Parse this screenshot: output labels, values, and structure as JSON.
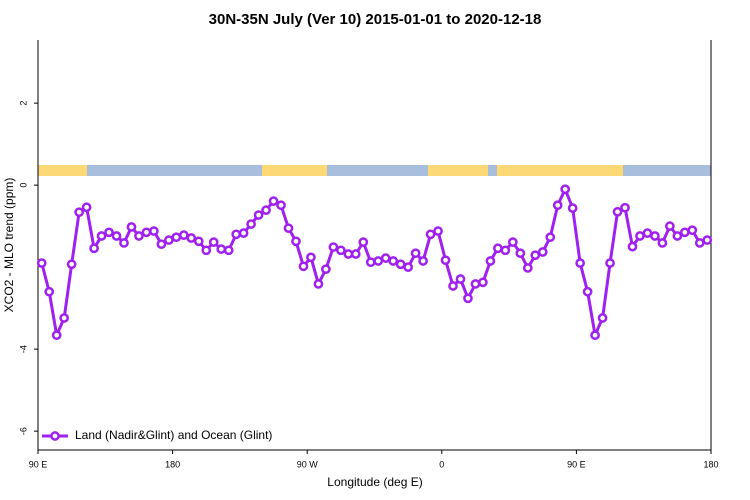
{
  "chart_data": {
    "type": "line",
    "title": "30N-35N July (Ver 10)   2015-01-01 to 2020-12-18",
    "x_label": "Longitude (deg E)",
    "y_label": "XCO2 - MLO trend (ppm)",
    "xlim": [
      90,
      540
    ],
    "xticks": [
      {
        "value": 90,
        "label": "90 E"
      },
      180,
      {
        "value": 270,
        "label": "90 W"
      },
      {
        "value": 360,
        "label": "0"
      },
      {
        "value": 450,
        "label": "90 E"
      },
      {
        "value": 540,
        "label": "180"
      }
    ],
    "ylim": [
      -6.46,
      3.54
    ],
    "yticks": [
      -6,
      -4,
      0,
      2
    ],
    "legend": "bottom-left",
    "x": [
      92.5,
      97.5,
      102.5,
      107.5,
      112.5,
      117.5,
      122.5,
      127.5,
      132.5,
      137.5,
      142.5,
      147.5,
      152.5,
      157.5,
      162.5,
      167.5,
      172.5,
      177.5,
      182.5,
      187.5,
      192.5,
      197.5,
      202.5,
      207.5,
      212.5,
      217.5,
      222.5,
      227.5,
      232.5,
      237.5,
      242.5,
      247.5,
      252.5,
      257.5,
      262.5,
      267.5,
      272.5,
      277.5,
      282.5,
      287.5,
      292.5,
      297.5,
      302.5,
      307.5,
      312.5,
      317.5,
      322.5,
      327.5,
      332.5,
      337.5,
      342.5,
      347.5,
      352.5,
      357.5,
      362.5,
      367.5,
      372.5,
      377.5,
      382.5,
      387.5,
      392.5,
      397.5,
      402.5,
      407.5,
      412.5,
      417.5,
      422.5,
      427.5,
      432.5,
      437.5,
      442.5,
      447.5,
      452.5,
      457.5,
      462.5,
      467.5,
      472.5,
      477.5,
      482.5,
      487.5,
      492.5,
      497.5,
      502.5,
      507.5,
      512.5,
      517.5,
      522.5,
      527.5,
      532.5,
      537.5
    ],
    "series": [
      {
        "name": "Land (Nadir&Glint) and Ocean (Glint)",
        "color": "#a020f0",
        "values": [
          -1.9,
          -2.6,
          -3.66,
          -3.24,
          -1.93,
          -0.66,
          -0.54,
          -1.54,
          -1.24,
          -1.15,
          -1.24,
          -1.41,
          -1.02,
          -1.24,
          -1.15,
          -1.12,
          -1.44,
          -1.34,
          -1.27,
          -1.22,
          -1.29,
          -1.37,
          -1.59,
          -1.39,
          -1.56,
          -1.59,
          -1.2,
          -1.17,
          -0.95,
          -0.73,
          -0.61,
          -0.39,
          -0.49,
          -1.05,
          -1.37,
          -1.98,
          -1.76,
          -2.41,
          -2.05,
          -1.51,
          -1.59,
          -1.68,
          -1.68,
          -1.39,
          -1.88,
          -1.85,
          -1.78,
          -1.85,
          -1.93,
          -2.0,
          -1.66,
          -1.85,
          -1.2,
          -1.12,
          -1.83,
          -2.46,
          -2.29,
          -2.76,
          -2.41,
          -2.37,
          -1.85,
          -1.54,
          -1.59,
          -1.39,
          -1.66,
          -2.02,
          -1.71,
          -1.63,
          -1.27,
          -0.49,
          -0.1,
          -0.56,
          -1.9,
          -2.6,
          -3.66,
          -3.24,
          -1.9,
          -0.65,
          -0.55,
          -1.5,
          -1.24,
          -1.17,
          -1.24,
          -1.41,
          -1.0,
          -1.24,
          -1.15,
          -1.1,
          -1.41,
          -1.34
        ]
      }
    ]
  }
}
